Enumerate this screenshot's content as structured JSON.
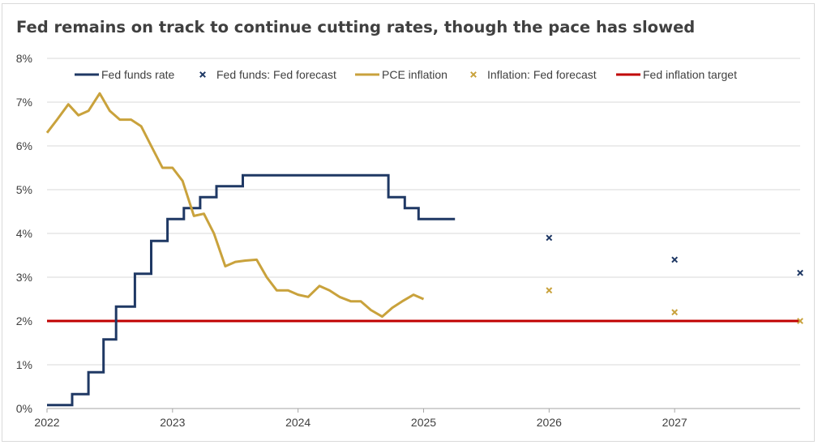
{
  "chart_data": {
    "type": "line",
    "title": "Fed remains on track to continue cutting rates, though the pace has slowed",
    "xlabel": "",
    "ylabel": "",
    "x_ticks": [
      "2022",
      "2023",
      "2024",
      "2025",
      "2026",
      "2027"
    ],
    "y_ticks": [
      "0%",
      "1%",
      "2%",
      "3%",
      "4%",
      "5%",
      "6%",
      "7%",
      "8%"
    ],
    "ylim": [
      0,
      8
    ],
    "xlim": [
      2022.0,
      2028.0
    ],
    "grid": "horizontal",
    "legend_position": "top",
    "colors": {
      "fed_funds": "#1f3864",
      "pce": "#c9a23c",
      "target": "#c00000",
      "grid": "#d9d9d9",
      "axis": "#a6a6a6"
    },
    "series": [
      {
        "name": "Fed funds rate",
        "kind": "step",
        "points": [
          [
            2022.0,
            0.08
          ],
          [
            2022.2,
            0.33
          ],
          [
            2022.33,
            0.83
          ],
          [
            2022.45,
            1.58
          ],
          [
            2022.55,
            2.33
          ],
          [
            2022.7,
            3.08
          ],
          [
            2022.83,
            3.83
          ],
          [
            2022.96,
            4.33
          ],
          [
            2023.09,
            4.58
          ],
          [
            2023.22,
            4.83
          ],
          [
            2023.35,
            5.08
          ],
          [
            2023.56,
            5.33
          ],
          [
            2024.72,
            4.83
          ],
          [
            2024.85,
            4.58
          ],
          [
            2024.96,
            4.33
          ],
          [
            2025.25,
            4.33
          ]
        ]
      },
      {
        "name": "Fed funds: Fed forecast",
        "kind": "marker",
        "points": [
          [
            2026.0,
            3.9
          ],
          [
            2027.0,
            3.4
          ],
          [
            2028.0,
            3.1
          ]
        ]
      },
      {
        "name": "PCE inflation",
        "kind": "line",
        "points": [
          [
            2022.0,
            6.3
          ],
          [
            2022.08,
            6.6
          ],
          [
            2022.17,
            6.95
          ],
          [
            2022.25,
            6.7
          ],
          [
            2022.33,
            6.8
          ],
          [
            2022.42,
            7.2
          ],
          [
            2022.5,
            6.8
          ],
          [
            2022.58,
            6.6
          ],
          [
            2022.67,
            6.6
          ],
          [
            2022.75,
            6.45
          ],
          [
            2022.83,
            6.0
          ],
          [
            2022.92,
            5.5
          ],
          [
            2023.0,
            5.5
          ],
          [
            2023.08,
            5.2
          ],
          [
            2023.17,
            4.4
          ],
          [
            2023.25,
            4.45
          ],
          [
            2023.33,
            4.0
          ],
          [
            2023.42,
            3.25
          ],
          [
            2023.5,
            3.35
          ],
          [
            2023.58,
            3.38
          ],
          [
            2023.67,
            3.4
          ],
          [
            2023.75,
            3.0
          ],
          [
            2023.83,
            2.7
          ],
          [
            2023.92,
            2.7
          ],
          [
            2024.0,
            2.6
          ],
          [
            2024.08,
            2.55
          ],
          [
            2024.17,
            2.8
          ],
          [
            2024.25,
            2.7
          ],
          [
            2024.33,
            2.55
          ],
          [
            2024.42,
            2.45
          ],
          [
            2024.5,
            2.45
          ],
          [
            2024.58,
            2.25
          ],
          [
            2024.67,
            2.1
          ],
          [
            2024.75,
            2.3
          ],
          [
            2024.83,
            2.45
          ],
          [
            2024.92,
            2.6
          ],
          [
            2025.0,
            2.5
          ]
        ]
      },
      {
        "name": "Inflation: Fed forecast",
        "kind": "marker",
        "points": [
          [
            2026.0,
            2.7
          ],
          [
            2027.0,
            2.2
          ],
          [
            2028.0,
            2.0
          ]
        ]
      },
      {
        "name": "Fed inflation target",
        "kind": "hline",
        "value": 2.0
      }
    ]
  }
}
